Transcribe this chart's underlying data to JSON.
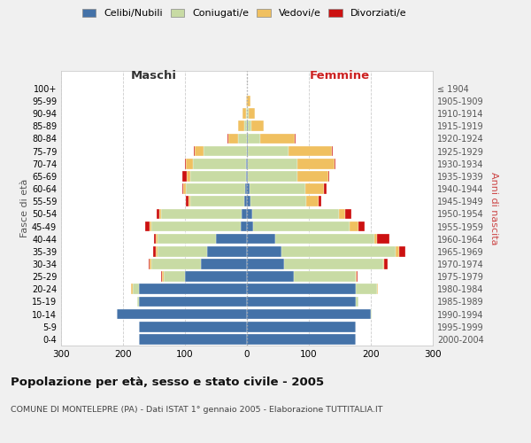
{
  "age_groups": [
    "0-4",
    "5-9",
    "10-14",
    "15-19",
    "20-24",
    "25-29",
    "30-34",
    "35-39",
    "40-44",
    "45-49",
    "50-54",
    "55-59",
    "60-64",
    "65-69",
    "70-74",
    "75-79",
    "80-84",
    "85-89",
    "90-94",
    "95-99",
    "100+"
  ],
  "birth_years": [
    "2000-2004",
    "1995-1999",
    "1990-1994",
    "1985-1989",
    "1980-1984",
    "1975-1979",
    "1970-1974",
    "1965-1969",
    "1960-1964",
    "1955-1959",
    "1950-1954",
    "1945-1949",
    "1940-1944",
    "1935-1939",
    "1930-1934",
    "1925-1929",
    "1920-1924",
    "1915-1919",
    "1910-1914",
    "1905-1909",
    "≤ 1904"
  ],
  "male_celibi": [
    175,
    175,
    210,
    175,
    175,
    100,
    75,
    65,
    50,
    10,
    8,
    4,
    3,
    2,
    2,
    0,
    0,
    0,
    0,
    0,
    0
  ],
  "male_coniugati": [
    0,
    0,
    0,
    2,
    10,
    35,
    80,
    80,
    95,
    145,
    130,
    88,
    95,
    90,
    85,
    70,
    15,
    5,
    2,
    0,
    0
  ],
  "male_vedovi": [
    0,
    0,
    0,
    0,
    2,
    2,
    2,
    2,
    2,
    2,
    3,
    3,
    5,
    5,
    12,
    15,
    15,
    10,
    5,
    2,
    0
  ],
  "male_divorziati": [
    0,
    0,
    0,
    0,
    0,
    2,
    2,
    4,
    3,
    8,
    5,
    3,
    2,
    8,
    1,
    1,
    1,
    0,
    0,
    0,
    0
  ],
  "fem_nubili": [
    175,
    175,
    200,
    175,
    175,
    75,
    60,
    55,
    45,
    10,
    8,
    5,
    4,
    2,
    2,
    2,
    2,
    2,
    0,
    0,
    0
  ],
  "fem_coniugate": [
    0,
    0,
    2,
    5,
    35,
    100,
    160,
    185,
    160,
    155,
    140,
    90,
    90,
    80,
    80,
    65,
    20,
    5,
    3,
    0,
    0
  ],
  "fem_vedove": [
    0,
    0,
    0,
    0,
    2,
    2,
    2,
    5,
    5,
    15,
    10,
    20,
    30,
    50,
    60,
    70,
    55,
    20,
    10,
    5,
    0
  ],
  "fem_divorziate": [
    0,
    0,
    0,
    0,
    0,
    2,
    5,
    10,
    20,
    10,
    10,
    5,
    5,
    1,
    1,
    1,
    1,
    0,
    0,
    0,
    0
  ],
  "colors": {
    "celibi": "#4472a8",
    "coniugati": "#c8dba4",
    "vedovi": "#f0c060",
    "divorziati": "#cc1111"
  },
  "title": "Popolazione per età, sesso e stato civile - 2005",
  "subtitle": "COMUNE DI MONTELEPRE (PA) - Dati ISTAT 1° gennaio 2005 - Elaborazione TUTTITALIA.IT",
  "xlabel_left": "Maschi",
  "xlabel_right": "Femmine",
  "ylabel_left": "Fasce di età",
  "ylabel_right": "Anni di nascita",
  "xlim": 300,
  "bg_color": "#f0f0f0",
  "plot_bg": "#ffffff",
  "legend_labels": [
    "Celibi/Nubili",
    "Coniugati/e",
    "Vedovi/e",
    "Divorziati/e"
  ]
}
